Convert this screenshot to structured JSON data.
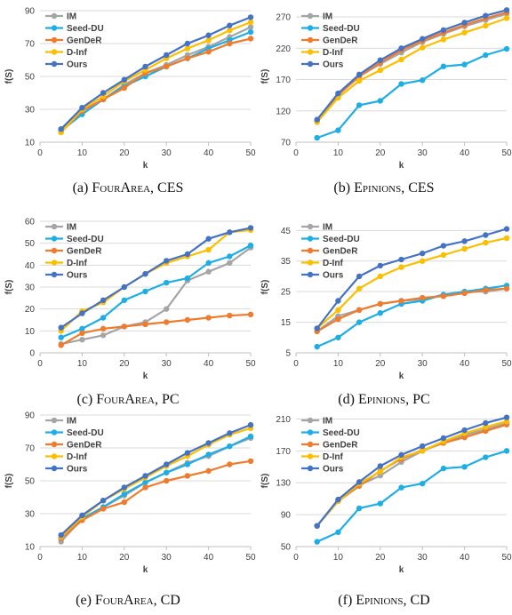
{
  "colors": {
    "IM": "#a5a5a5",
    "Seed-DU": "#1eaee6",
    "GenDeR": "#ef7c2e",
    "D-Inf": "#fbbf00",
    "Ours": "#4472c4",
    "grid": "#d9d9d9",
    "axis": "#bfbfbf",
    "text": "#404040"
  },
  "legend_order": [
    "IM",
    "Seed-DU",
    "GenDeR",
    "D-Inf",
    "Ours"
  ],
  "chart_data": [
    {
      "type": "line",
      "panel": "(a)",
      "caption": {
        "label": "(a)",
        "dataset": "FourArea",
        "metric": ", CES"
      },
      "xlabel": "k",
      "ylabel": "f(S)",
      "xlim": [
        0,
        50
      ],
      "xticks": [
        0,
        10,
        20,
        30,
        40,
        50
      ],
      "ylim": [
        10,
        90
      ],
      "yticks": [
        10,
        30,
        50,
        70,
        90
      ],
      "x": [
        5,
        10,
        15,
        20,
        25,
        30,
        35,
        40,
        45,
        50
      ],
      "legend_position": "top-left",
      "series": [
        {
          "name": "IM",
          "values": [
            17,
            29,
            36,
            45,
            52,
            57,
            63,
            68,
            74,
            80
          ]
        },
        {
          "name": "Seed-DU",
          "values": [
            17,
            27,
            36,
            44,
            50,
            56,
            61,
            67,
            72,
            77
          ]
        },
        {
          "name": "GenDeR",
          "values": [
            16,
            29,
            36,
            43,
            52,
            56,
            61,
            65,
            70,
            73
          ]
        },
        {
          "name": "D-Inf",
          "values": [
            16,
            30,
            38,
            47,
            54,
            61,
            67,
            72,
            78,
            83
          ]
        },
        {
          "name": "Ours",
          "values": [
            18,
            31,
            40,
            48,
            56,
            63,
            70,
            75,
            81,
            86
          ]
        }
      ]
    },
    {
      "type": "line",
      "panel": "(b)",
      "caption": {
        "label": "(b)",
        "dataset": "Epinions",
        "metric": ", CES"
      },
      "xlabel": "k",
      "ylabel": "f(S)",
      "xlim": [
        0,
        50
      ],
      "xticks": [
        0,
        10,
        20,
        30,
        40,
        50
      ],
      "ylim": [
        70,
        280
      ],
      "yticks": [
        70,
        120,
        170,
        220,
        270
      ],
      "x": [
        5,
        10,
        15,
        20,
        25,
        30,
        35,
        40,
        45,
        50
      ],
      "legend_position": "top-left",
      "series": [
        {
          "name": "IM",
          "values": [
            104,
            146,
            175,
            195,
            213,
            230,
            243,
            255,
            265,
            275
          ]
        },
        {
          "name": "Seed-DU",
          "values": [
            77,
            89,
            129,
            136,
            163,
            169,
            191,
            194,
            209,
            219
          ]
        },
        {
          "name": "GenDeR",
          "values": [
            104,
            145,
            175,
            197,
            217,
            232,
            245,
            257,
            268,
            277
          ]
        },
        {
          "name": "D-Inf",
          "values": [
            102,
            141,
            168,
            185,
            202,
            221,
            234,
            245,
            256,
            268
          ]
        },
        {
          "name": "Ours",
          "values": [
            106,
            148,
            178,
            201,
            220,
            235,
            249,
            261,
            272,
            281
          ]
        }
      ]
    },
    {
      "type": "line",
      "panel": "(c)",
      "caption": {
        "label": "(c)",
        "dataset": "FourArea",
        "metric": ", PC"
      },
      "xlabel": "k",
      "ylabel": "f(S)",
      "xlim": [
        0,
        50
      ],
      "xticks": [
        0,
        10,
        20,
        30,
        40,
        50
      ],
      "ylim": [
        0,
        60
      ],
      "yticks": [
        0,
        10,
        20,
        30,
        40,
        50,
        60
      ],
      "x": [
        5,
        10,
        15,
        20,
        25,
        30,
        35,
        40,
        45,
        50
      ],
      "legend_position": "top-left",
      "series": [
        {
          "name": "IM",
          "values": [
            4,
            6,
            8,
            12,
            14,
            20,
            33,
            37,
            41,
            48
          ]
        },
        {
          "name": "Seed-DU",
          "values": [
            7,
            11,
            16,
            24,
            28,
            32,
            34,
            41,
            44,
            49
          ]
        },
        {
          "name": "GenDeR",
          "values": [
            3.5,
            9,
            11,
            12,
            13,
            14,
            15,
            16,
            17,
            17.5
          ]
        },
        {
          "name": "D-Inf",
          "values": [
            10,
            19,
            23,
            30,
            36,
            41,
            44,
            47,
            55,
            56
          ]
        },
        {
          "name": "Ours",
          "values": [
            11.5,
            18,
            24,
            30,
            36,
            42,
            45,
            52,
            55,
            57
          ]
        }
      ]
    },
    {
      "type": "line",
      "panel": "(d)",
      "caption": {
        "label": "(d)",
        "dataset": "Epinions",
        "metric": ", PC"
      },
      "xlabel": "k",
      "ylabel": "f(S)",
      "xlim": [
        0,
        50
      ],
      "xticks": [
        0,
        10,
        20,
        30,
        40,
        50
      ],
      "ylim": [
        5,
        48
      ],
      "yticks": [
        5,
        15,
        25,
        35,
        45
      ],
      "x": [
        5,
        10,
        15,
        20,
        25,
        30,
        35,
        40,
        45,
        50
      ],
      "legend_position": "top-left",
      "series": [
        {
          "name": "IM",
          "values": [
            12,
            17,
            19,
            21,
            22,
            22.5,
            24,
            25,
            25,
            26
          ]
        },
        {
          "name": "Seed-DU",
          "values": [
            7,
            10,
            15,
            18,
            21,
            22,
            24,
            25,
            26,
            27
          ]
        },
        {
          "name": "GenDeR",
          "values": [
            12,
            16,
            19,
            21,
            22,
            23,
            23.5,
            24.5,
            25.5,
            26
          ]
        },
        {
          "name": "D-Inf",
          "values": [
            13,
            19,
            26,
            30,
            33,
            35,
            37,
            39,
            41,
            42.5
          ]
        },
        {
          "name": "Ours",
          "values": [
            13,
            22,
            30,
            33.5,
            35.5,
            37.5,
            40,
            41.5,
            43.5,
            45.5
          ]
        }
      ]
    },
    {
      "type": "line",
      "panel": "(e)",
      "caption": {
        "label": "(e)",
        "dataset": "FourArea",
        "metric": ", CD"
      },
      "xlabel": "k",
      "ylabel": "f(S)",
      "xlim": [
        0,
        50
      ],
      "xticks": [
        0,
        10,
        20,
        30,
        40,
        50
      ],
      "ylim": [
        10,
        90
      ],
      "yticks": [
        10,
        30,
        50,
        70,
        90
      ],
      "x": [
        5,
        10,
        15,
        20,
        25,
        30,
        35,
        40,
        45,
        50
      ],
      "legend_position": "top-left",
      "series": [
        {
          "name": "IM",
          "values": [
            13,
            27,
            34,
            41,
            49,
            55,
            61,
            65,
            71,
            76
          ]
        },
        {
          "name": "Seed-DU",
          "values": [
            15,
            27,
            34,
            42,
            49,
            55,
            60,
            66,
            71,
            77
          ]
        },
        {
          "name": "GenDeR",
          "values": [
            15,
            26,
            33,
            37,
            46,
            50,
            53,
            56,
            60,
            62
          ]
        },
        {
          "name": "D-Inf",
          "values": [
            16,
            28,
            38,
            45,
            52,
            59,
            65,
            72,
            78,
            82
          ]
        },
        {
          "name": "Ours",
          "values": [
            17,
            29,
            38,
            46,
            53,
            60,
            67,
            73,
            79,
            84
          ]
        }
      ]
    },
    {
      "type": "line",
      "panel": "(f)",
      "caption": {
        "label": "(f)",
        "dataset": "Epinions",
        "metric": ", CD"
      },
      "xlabel": "k",
      "ylabel": "f(S)",
      "xlim": [
        0,
        50
      ],
      "xticks": [
        0,
        10,
        20,
        30,
        40,
        50
      ],
      "ylim": [
        50,
        215
      ],
      "yticks": [
        50,
        90,
        130,
        170,
        210
      ],
      "x": [
        5,
        10,
        15,
        20,
        25,
        30,
        35,
        40,
        45,
        50
      ],
      "legend_position": "top-left",
      "series": [
        {
          "name": "IM",
          "values": [
            76,
            107,
            127,
            139,
            156,
            170,
            180,
            190,
            197,
            205
          ]
        },
        {
          "name": "Seed-DU",
          "values": [
            56,
            68,
            98,
            104,
            124,
            129,
            148,
            150,
            162,
            170
          ]
        },
        {
          "name": "GenDeR",
          "values": [
            76,
            107,
            126,
            145,
            160,
            171,
            180,
            187,
            195,
            203
          ]
        },
        {
          "name": "D-Inf",
          "values": [
            76,
            107,
            129,
            144,
            162,
            170,
            182,
            192,
            200,
            207
          ]
        },
        {
          "name": "Ours",
          "values": [
            76,
            109,
            131,
            151,
            165,
            176,
            186,
            196,
            205,
            212
          ]
        }
      ]
    }
  ]
}
